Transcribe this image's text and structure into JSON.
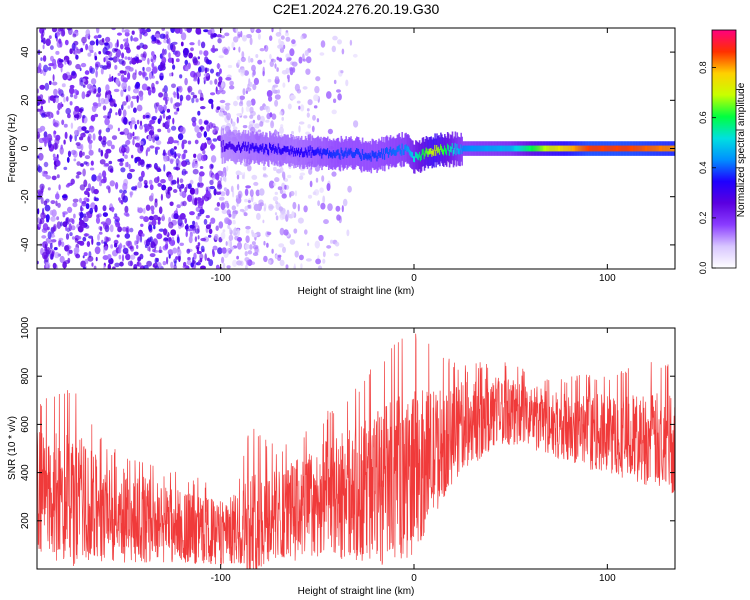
{
  "figure": {
    "title": "C2E1.2024.276.20.19.G30"
  },
  "colors": {
    "snr_line": "#f03a3a",
    "background": "#ffffff",
    "colormap": [
      "#ffffff",
      "#d8c6ff",
      "#8a3cff",
      "#5b00e0",
      "#1e00ff",
      "#0090ff",
      "#00e0e0",
      "#00ff40",
      "#c8ff00",
      "#ffd000",
      "#ff3000",
      "#ff007f"
    ]
  },
  "chart_data": [
    {
      "type": "heatmap",
      "title": "",
      "xlabel": "Height of straight line (km)",
      "ylabel": "Frequency (Hz)",
      "xlim": [
        -195,
        135
      ],
      "ylim": [
        -50,
        50
      ],
      "xticks": [
        {
          "v": -100,
          "label": "-100"
        },
        {
          "v": 0,
          "label": "0"
        },
        {
          "v": 100,
          "label": "100"
        }
      ],
      "yticks": [
        {
          "v": -40,
          "label": "-40"
        },
        {
          "v": -20,
          "label": "-20"
        },
        {
          "v": 0,
          "label": "0"
        },
        {
          "v": 20,
          "label": "20"
        },
        {
          "v": 40,
          "label": "40"
        }
      ],
      "colorbar": {
        "label": "Normalized spectral amplitude",
        "range": [
          0,
          0.95
        ],
        "ticks": [
          {
            "v": 0,
            "label": "0.0"
          },
          {
            "v": 0.2,
            "label": "0.2"
          },
          {
            "v": 0.4,
            "label": "0.4"
          },
          {
            "v": 0.6,
            "label": "0.6"
          },
          {
            "v": 0.8,
            "label": "0.8"
          }
        ]
      },
      "ridge": [
        {
          "x": -100,
          "y": 1,
          "amp": 0.3
        },
        {
          "x": -80,
          "y": 0,
          "amp": 0.35
        },
        {
          "x": -60,
          "y": -1,
          "amp": 0.35
        },
        {
          "x": -40,
          "y": -2,
          "amp": 0.4
        },
        {
          "x": -20,
          "y": -3,
          "amp": 0.4
        },
        {
          "x": -5,
          "y": 0,
          "amp": 0.45
        },
        {
          "x": 0,
          "y": -4,
          "amp": 0.55
        },
        {
          "x": 10,
          "y": -1,
          "amp": 0.75
        },
        {
          "x": 25,
          "y": 0,
          "amp": 0.45
        },
        {
          "x": 50,
          "y": 0,
          "amp": 0.5
        },
        {
          "x": 70,
          "y": 0,
          "amp": 0.75
        },
        {
          "x": 90,
          "y": 0,
          "amp": 0.9
        },
        {
          "x": 110,
          "y": 0,
          "amp": 0.9
        },
        {
          "x": 135,
          "y": 0,
          "amp": 0.85
        }
      ]
    },
    {
      "type": "line",
      "title": "",
      "xlabel": "Height of straight line (km)",
      "ylabel": "SNR (10 * v/v)",
      "xlim": [
        -195,
        135
      ],
      "ylim": [
        0,
        1000
      ],
      "xticks": [
        {
          "v": -100,
          "label": "-100"
        },
        {
          "v": 0,
          "label": "0"
        },
        {
          "v": 100,
          "label": "100"
        }
      ],
      "yticks": [
        {
          "v": 200,
          "label": "200"
        },
        {
          "v": 400,
          "label": "400"
        },
        {
          "v": 600,
          "label": "600"
        },
        {
          "v": 800,
          "label": "800"
        },
        {
          "v": 1000,
          "label": "1000"
        }
      ],
      "envelope": [
        {
          "x": -195,
          "lo": 80,
          "mean": 320,
          "hi": 700
        },
        {
          "x": -175,
          "lo": 40,
          "mean": 280,
          "hi": 760
        },
        {
          "x": -160,
          "lo": 30,
          "mean": 250,
          "hi": 520
        },
        {
          "x": -130,
          "lo": 20,
          "mean": 200,
          "hi": 420
        },
        {
          "x": -110,
          "lo": 20,
          "mean": 160,
          "hi": 380
        },
        {
          "x": -100,
          "lo": 20,
          "mean": 150,
          "hi": 360
        },
        {
          "x": -90,
          "lo": 20,
          "mean": 170,
          "hi": 400
        },
        {
          "x": -85,
          "lo": 30,
          "mean": 190,
          "hi": 600
        },
        {
          "x": -70,
          "lo": 30,
          "mean": 230,
          "hi": 500
        },
        {
          "x": -50,
          "lo": 40,
          "mean": 280,
          "hi": 620
        },
        {
          "x": -30,
          "lo": 50,
          "mean": 320,
          "hi": 760
        },
        {
          "x": -15,
          "lo": 60,
          "mean": 350,
          "hi": 900
        },
        {
          "x": 0,
          "lo": 130,
          "mean": 400,
          "hi": 1000
        },
        {
          "x": 10,
          "lo": 250,
          "mean": 480,
          "hi": 920
        },
        {
          "x": 25,
          "lo": 400,
          "mean": 600,
          "hi": 850
        },
        {
          "x": 45,
          "lo": 520,
          "mean": 660,
          "hi": 880
        },
        {
          "x": 60,
          "lo": 500,
          "mean": 640,
          "hi": 820
        },
        {
          "x": 80,
          "lo": 440,
          "mean": 580,
          "hi": 800
        },
        {
          "x": 100,
          "lo": 400,
          "mean": 560,
          "hi": 820
        },
        {
          "x": 120,
          "lo": 380,
          "mean": 540,
          "hi": 860
        },
        {
          "x": 135,
          "lo": 340,
          "mean": 520,
          "hi": 880
        }
      ]
    }
  ]
}
